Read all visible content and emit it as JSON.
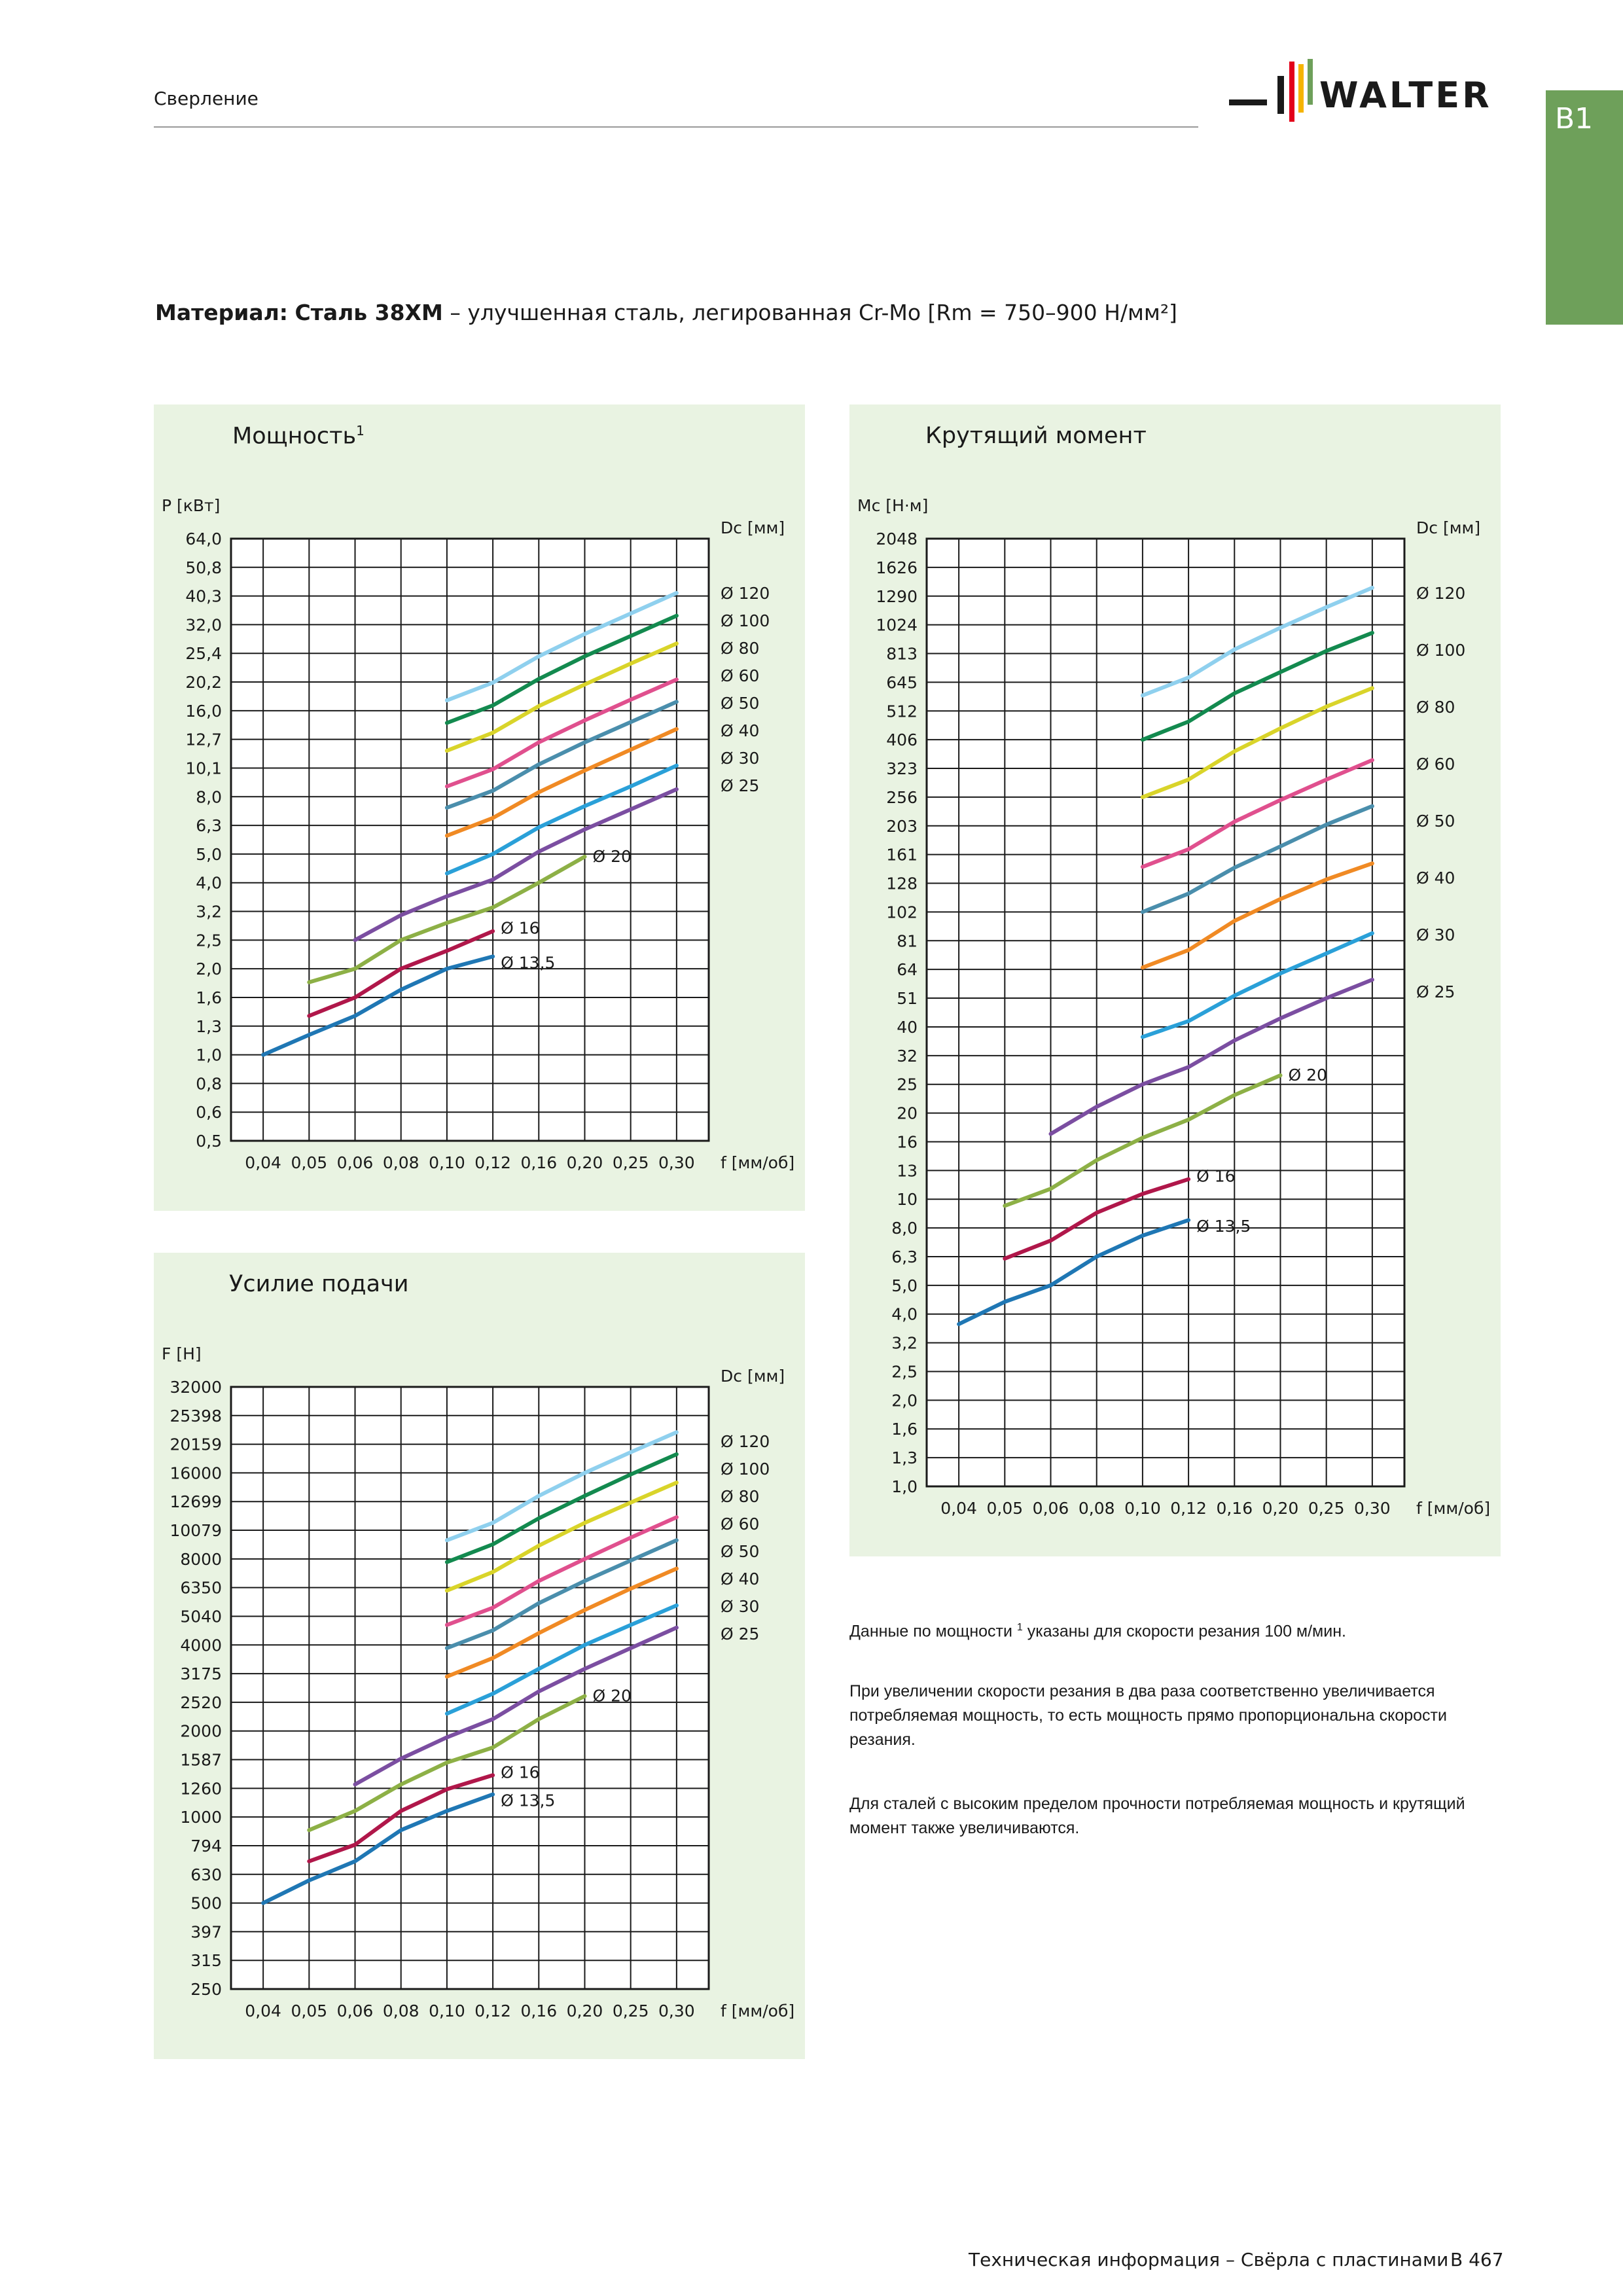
{
  "header": {
    "section": "Сверление",
    "logo_text": "WALTER",
    "tab": "B1"
  },
  "material": {
    "label": "Материал:",
    "name": "Сталь 38ХМ",
    "description": " – улучшенная сталь, легированная Cr-Mo [Rm = 750–900 Н/мм²]"
  },
  "charts": {
    "power": {
      "title": "Мощность",
      "superscript": "1",
      "y_axis_label": "P [кВт]",
      "legend_label": "Dc [мм]",
      "x_axis_label": "f [мм/об]"
    },
    "feed": {
      "title": "Усилие подачи",
      "y_axis_label": "F [Н]",
      "legend_label": "Dc [мм]",
      "x_axis_label": "f [мм/об]"
    },
    "torque": {
      "title": "Крутящий момент",
      "y_axis_label": "Mc [Н·м]",
      "legend_label": "Dc [мм]",
      "x_axis_label": "f [мм/об]"
    }
  },
  "chart_data": [
    {
      "id": "power",
      "type": "line",
      "title": "Мощность",
      "xlabel": "f [мм/об]",
      "ylabel": "P [кВт]",
      "legend_title": "Dc [мм]",
      "x_ticks": [
        "0,04",
        "0,05",
        "0,06",
        "0,08",
        "0,10",
        "0,12",
        "0,16",
        "0,20",
        "0,25",
        "0,30"
      ],
      "y_ticks": [
        "0,5",
        "0,6",
        "0,8",
        "1,0",
        "1,3",
        "1,6",
        "2,0",
        "2,5",
        "3,2",
        "4,0",
        "5,0",
        "6,3",
        "8,0",
        "10,1",
        "12,7",
        "16,0",
        "20,2",
        "25,4",
        "32,0",
        "40,3",
        "50,8",
        "64,0"
      ],
      "series": [
        {
          "name": "Ø 13,5",
          "color": "#1f77b4",
          "x": [
            "0,04",
            "0,05",
            "0,06",
            "0,08",
            "0,10",
            "0,12"
          ],
          "y": [
            "1,0",
            "1,2",
            "1,4",
            "1,7",
            "2,0",
            "2,2"
          ]
        },
        {
          "name": "Ø 16",
          "color": "#b0174a",
          "x": [
            "0,05",
            "0,06",
            "0,08",
            "0,10",
            "0,12"
          ],
          "y": [
            "1,4",
            "1,6",
            "2,0",
            "2,3",
            "2,7"
          ]
        },
        {
          "name": "Ø 20",
          "color": "#8db046",
          "x": [
            "0,05",
            "0,06",
            "0,08",
            "0,10",
            "0,12",
            "0,16",
            "0,20"
          ],
          "y": [
            "1,8",
            "2,0",
            "2,5",
            "2,9",
            "3,3",
            "4,0",
            "4,9"
          ]
        },
        {
          "name": "Ø 25",
          "color": "#7b4ea1",
          "x": [
            "0,06",
            "0,08",
            "0,10",
            "0,12",
            "0,16",
            "0,20",
            "0,25",
            "0,30"
          ],
          "y": [
            "2,5",
            "3,1",
            "3,6",
            "4,1",
            "5,1",
            "6,1",
            "7,2",
            "8,5"
          ]
        },
        {
          "name": "Ø 30",
          "color": "#2aa0d8",
          "x": [
            "0,10",
            "0,12",
            "0,16",
            "0,20",
            "0,25",
            "0,30"
          ],
          "y": [
            "4,3",
            "5,0",
            "6,2",
            "7,4",
            "8,7",
            "10,3"
          ]
        },
        {
          "name": "Ø 40",
          "color": "#f08a24",
          "x": [
            "0,10",
            "0,12",
            "0,16",
            "0,20",
            "0,25",
            "0,30"
          ],
          "y": [
            "5,8",
            "6,7",
            "8,3",
            "9,9",
            "11,7",
            "13,8"
          ]
        },
        {
          "name": "Ø 50",
          "color": "#4a8eac",
          "x": [
            "0,10",
            "0,12",
            "0,16",
            "0,20",
            "0,25",
            "0,30"
          ],
          "y": [
            "7,3",
            "8,4",
            "10,4",
            "12,4",
            "14,6",
            "17,2"
          ]
        },
        {
          "name": "Ø 60",
          "color": "#e0508e",
          "x": [
            "0,10",
            "0,12",
            "0,16",
            "0,20",
            "0,25",
            "0,30"
          ],
          "y": [
            "8,7",
            "10,0",
            "12,4",
            "14,8",
            "17,5",
            "20,6"
          ]
        },
        {
          "name": "Ø 80",
          "color": "#d9d42a",
          "x": [
            "0,10",
            "0,12",
            "0,16",
            "0,20",
            "0,25",
            "0,30"
          ],
          "y": [
            "11,6",
            "13,4",
            "16,6",
            "19,8",
            "23,4",
            "27,5"
          ]
        },
        {
          "name": "Ø 100",
          "color": "#138a4f",
          "x": [
            "0,10",
            "0,12",
            "0,16",
            "0,20",
            "0,25",
            "0,30"
          ],
          "y": [
            "14,5",
            "16,7",
            "20,7",
            "24,8",
            "29,2",
            "34,4"
          ]
        },
        {
          "name": "Ø 120",
          "color": "#8fd0ee",
          "x": [
            "0,10",
            "0,12",
            "0,16",
            "0,20",
            "0,25",
            "0,30"
          ],
          "y": [
            "17,4",
            "20,1",
            "24,8",
            "29,7",
            "35,0",
            "41,3"
          ]
        }
      ]
    },
    {
      "id": "feed",
      "type": "line",
      "title": "Усилие подачи",
      "xlabel": "f [мм/об]",
      "ylabel": "F [Н]",
      "legend_title": "Dc [мм]",
      "x_ticks": [
        "0,04",
        "0,05",
        "0,06",
        "0,08",
        "0,10",
        "0,12",
        "0,16",
        "0,20",
        "0,25",
        "0,30"
      ],
      "y_ticks": [
        "250",
        "315",
        "397",
        "500",
        "630",
        "794",
        "1000",
        "1260",
        "1587",
        "2000",
        "2520",
        "3175",
        "4000",
        "5040",
        "6350",
        "8000",
        "10079",
        "12699",
        "16000",
        "20159",
        "25398",
        "32000"
      ],
      "series": [
        {
          "name": "Ø 13,5",
          "color": "#1f77b4",
          "x": [
            "0,04",
            "0,05",
            "0,06",
            "0,08",
            "0,10",
            "0,12"
          ],
          "y": [
            "500",
            "600",
            "700",
            "900",
            "1050",
            "1200"
          ]
        },
        {
          "name": "Ø 16",
          "color": "#b0174a",
          "x": [
            "0,05",
            "0,06",
            "0,08",
            "0,10",
            "0,12"
          ],
          "y": [
            "700",
            "800",
            "1050",
            "1250",
            "1400"
          ]
        },
        {
          "name": "Ø 20",
          "color": "#8db046",
          "x": [
            "0,05",
            "0,06",
            "0,08",
            "0,10",
            "0,12",
            "0,16",
            "0,20"
          ],
          "y": [
            "900",
            "1050",
            "1300",
            "1550",
            "1750",
            "2200",
            "2650"
          ]
        },
        {
          "name": "Ø 25",
          "color": "#7b4ea1",
          "x": [
            "0,06",
            "0,08",
            "0,10",
            "0,12",
            "0,16",
            "0,20",
            "0,25",
            "0,30"
          ],
          "y": [
            "1300",
            "1600",
            "1900",
            "2200",
            "2750",
            "3300",
            "3900",
            "4600"
          ]
        },
        {
          "name": "Ø 30",
          "color": "#2aa0d8",
          "x": [
            "0,10",
            "0,12",
            "0,16",
            "0,20",
            "0,25",
            "0,30"
          ],
          "y": [
            "2300",
            "2700",
            "3300",
            "4000",
            "4700",
            "5500"
          ]
        },
        {
          "name": "Ø 40",
          "color": "#f08a24",
          "x": [
            "0,10",
            "0,12",
            "0,16",
            "0,20",
            "0,25",
            "0,30"
          ],
          "y": [
            "3100",
            "3600",
            "4400",
            "5300",
            "6300",
            "7400"
          ]
        },
        {
          "name": "Ø 50",
          "color": "#4a8eac",
          "x": [
            "0,10",
            "0,12",
            "0,16",
            "0,20",
            "0,25",
            "0,30"
          ],
          "y": [
            "3900",
            "4500",
            "5600",
            "6700",
            "7900",
            "9300"
          ]
        },
        {
          "name": "Ø 60",
          "color": "#e0508e",
          "x": [
            "0,10",
            "0,12",
            "0,16",
            "0,20",
            "0,25",
            "0,30"
          ],
          "y": [
            "4700",
            "5400",
            "6700",
            "8000",
            "9500",
            "11200"
          ]
        },
        {
          "name": "Ø 80",
          "color": "#d9d42a",
          "x": [
            "0,10",
            "0,12",
            "0,16",
            "0,20",
            "0,25",
            "0,30"
          ],
          "y": [
            "6200",
            "7200",
            "8900",
            "10700",
            "12600",
            "14800"
          ]
        },
        {
          "name": "Ø 100",
          "color": "#138a4f",
          "x": [
            "0,10",
            "0,12",
            "0,16",
            "0,20",
            "0,25",
            "0,30"
          ],
          "y": [
            "7800",
            "9000",
            "11100",
            "13300",
            "15800",
            "18600"
          ]
        },
        {
          "name": "Ø 120",
          "color": "#8fd0ee",
          "x": [
            "0,10",
            "0,12",
            "0,16",
            "0,20",
            "0,25",
            "0,30"
          ],
          "y": [
            "9300",
            "10700",
            "13300",
            "16000",
            "18900",
            "22200"
          ]
        }
      ]
    },
    {
      "id": "torque",
      "type": "line",
      "title": "Крутящий момент",
      "xlabel": "f [мм/об]",
      "ylabel": "Mc [Н·м]",
      "legend_title": "Dc [мм]",
      "x_ticks": [
        "0,04",
        "0,05",
        "0,06",
        "0,08",
        "0,10",
        "0,12",
        "0,16",
        "0,20",
        "0,25",
        "0,30"
      ],
      "y_ticks": [
        "1,0",
        "1,3",
        "1,6",
        "2,0",
        "2,5",
        "3,2",
        "4,0",
        "5,0",
        "6,3",
        "8,0",
        "10",
        "13",
        "16",
        "20",
        "25",
        "32",
        "40",
        "51",
        "64",
        "81",
        "102",
        "128",
        "161",
        "203",
        "256",
        "323",
        "406",
        "512",
        "645",
        "813",
        "1024",
        "1290",
        "1626",
        "2048"
      ],
      "series": [
        {
          "name": "Ø 13,5",
          "color": "#1f77b4",
          "x": [
            "0,04",
            "0,05",
            "0,06",
            "0,08",
            "0,10",
            "0,12"
          ],
          "y": [
            "3,7",
            "4,4",
            "5,0",
            "6,3",
            "7,5",
            "8,5"
          ]
        },
        {
          "name": "Ø 16",
          "color": "#b0174a",
          "x": [
            "0,05",
            "0,06",
            "0,08",
            "0,10",
            "0,12"
          ],
          "y": [
            "6,2",
            "7,2",
            "9,0",
            "10,5",
            "12,0"
          ]
        },
        {
          "name": "Ø 20",
          "color": "#8db046",
          "x": [
            "0,05",
            "0,06",
            "0,08",
            "0,10",
            "0,12",
            "0,16",
            "0,20"
          ],
          "y": [
            "9,5",
            "11",
            "14",
            "16,5",
            "19",
            "23",
            "27"
          ]
        },
        {
          "name": "Ø 25",
          "color": "#7b4ea1",
          "x": [
            "0,06",
            "0,08",
            "0,10",
            "0,12",
            "0,16",
            "0,20",
            "0,25",
            "0,30"
          ],
          "y": [
            "17",
            "21",
            "25",
            "29",
            "36",
            "43",
            "51",
            "59"
          ]
        },
        {
          "name": "Ø 30",
          "color": "#2aa0d8",
          "x": [
            "0,10",
            "0,12",
            "0,16",
            "0,20",
            "0,25",
            "0,30"
          ],
          "y": [
            "37",
            "42",
            "52",
            "62",
            "73",
            "86"
          ]
        },
        {
          "name": "Ø 40",
          "color": "#f08a24",
          "x": [
            "0,10",
            "0,12",
            "0,16",
            "0,20",
            "0,25",
            "0,30"
          ],
          "y": [
            "65",
            "75",
            "95",
            "113",
            "132",
            "150"
          ]
        },
        {
          "name": "Ø 50",
          "color": "#4a8eac",
          "x": [
            "0,10",
            "0,12",
            "0,16",
            "0,20",
            "0,25",
            "0,30"
          ],
          "y": [
            "102",
            "118",
            "145",
            "172",
            "205",
            "238"
          ]
        },
        {
          "name": "Ø 60",
          "color": "#e0508e",
          "x": [
            "0,10",
            "0,12",
            "0,16",
            "0,20",
            "0,25",
            "0,30"
          ],
          "y": [
            "146",
            "168",
            "210",
            "250",
            "295",
            "345"
          ]
        },
        {
          "name": "Ø 80",
          "color": "#d9d42a",
          "x": [
            "0,10",
            "0,12",
            "0,16",
            "0,20",
            "0,25",
            "0,30"
          ],
          "y": [
            "256",
            "295",
            "370",
            "445",
            "530",
            "615"
          ]
        },
        {
          "name": "Ø 100",
          "color": "#138a4f",
          "x": [
            "0,10",
            "0,12",
            "0,16",
            "0,20",
            "0,25",
            "0,30"
          ],
          "y": [
            "406",
            "470",
            "590",
            "700",
            "830",
            "960"
          ]
        },
        {
          "name": "Ø 120",
          "color": "#8fd0ee",
          "x": [
            "0,10",
            "0,12",
            "0,16",
            "0,20",
            "0,25",
            "0,30"
          ],
          "y": [
            "580",
            "670",
            "840",
            "1000",
            "1180",
            "1380"
          ]
        }
      ]
    }
  ],
  "notes": {
    "power_note_pre": "Данные по мощности ",
    "power_note_sup": "1",
    "power_note_post": " указаны для скорости резания 100 м/мин.",
    "speed_note": "При увеличении скорости резания в два раза соответственно увеличивается потребляемая мощность, то есть мощность прямо пропорциональна скорости резания.",
    "strength_note": "Для сталей с высоким пределом прочности потребляемая мощность и крутящий момент также увеличиваются."
  },
  "footer": {
    "title": "Техническая информация – Свёрла с пластинами",
    "page": "B 467"
  },
  "colors": {
    "panel_bg": "#e9f3e2",
    "tab_bg": "#6ea05a",
    "logo_bars": [
      "#e2001a",
      "#f5b400",
      "#6ea05a"
    ]
  }
}
